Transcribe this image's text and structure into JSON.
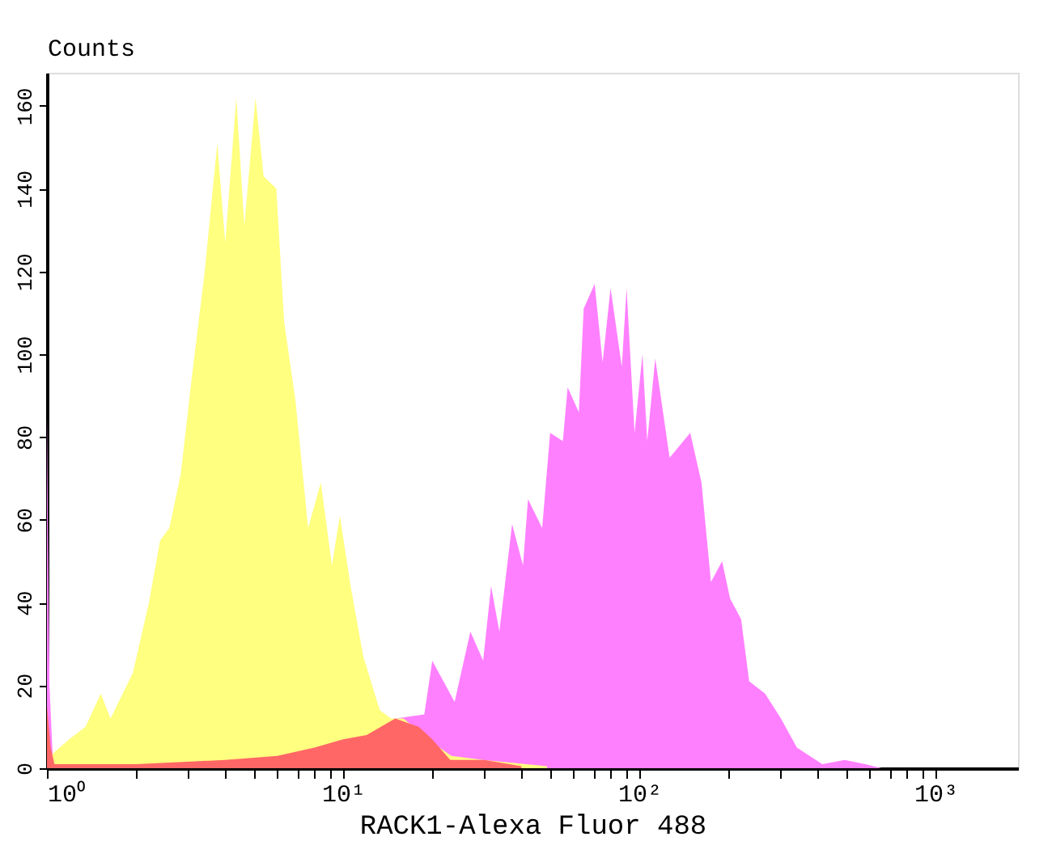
{
  "chart_data": {
    "type": "area",
    "xlabel": "RACK1-Alexa Fluor 488",
    "ylabel": "Counts",
    "log": "x",
    "grid": false,
    "xlim": [
      1,
      1900
    ],
    "ylim": [
      0,
      168
    ],
    "xticks": [
      {
        "value": 1,
        "label": "10⁰"
      },
      {
        "value": 2,
        "label": null
      },
      {
        "value": 3,
        "label": null
      },
      {
        "value": 4,
        "label": null
      },
      {
        "value": 5,
        "label": null
      },
      {
        "value": 6,
        "label": null
      },
      {
        "value": 7,
        "label": null
      },
      {
        "value": 8,
        "label": null
      },
      {
        "value": 9,
        "label": null
      },
      {
        "value": 10,
        "label": "10¹"
      },
      {
        "value": 20,
        "label": null
      },
      {
        "value": 30,
        "label": null
      },
      {
        "value": 40,
        "label": null
      },
      {
        "value": 50,
        "label": null
      },
      {
        "value": 60,
        "label": null
      },
      {
        "value": 70,
        "label": null
      },
      {
        "value": 80,
        "label": null
      },
      {
        "value": 90,
        "label": null
      },
      {
        "value": 100,
        "label": "10²"
      },
      {
        "value": 200,
        "label": null
      },
      {
        "value": 300,
        "label": null
      },
      {
        "value": 400,
        "label": null
      },
      {
        "value": 500,
        "label": null
      },
      {
        "value": 600,
        "label": null
      },
      {
        "value": 700,
        "label": null
      },
      {
        "value": 800,
        "label": null
      },
      {
        "value": 900,
        "label": null
      },
      {
        "value": 1000,
        "label": "10³"
      }
    ],
    "yticks": [
      0,
      20,
      40,
      60,
      80,
      100,
      120,
      140,
      160
    ],
    "series": [
      {
        "color": "#ff80ff",
        "x": [
          1,
          1.02,
          1.05,
          18.8,
          20.0,
          23.8,
          26.9,
          29.7,
          31.6,
          33.7,
          37.2,
          40.5,
          42.1,
          47.0,
          50.0,
          55.2,
          57.3,
          62.5,
          64.9,
          70.7,
          75.2,
          80.0,
          87.3,
          90.6,
          96.4,
          102.5,
          106.4,
          113.2,
          126.6,
          148.6,
          162.2,
          174.6,
          190.4,
          202.5,
          220.7,
          235.0,
          265.9,
          300.8,
          340.6,
          415,
          494,
          580,
          657
        ],
        "values": [
          85,
          20,
          0,
          13,
          26,
          16,
          33,
          26,
          44,
          33,
          59,
          49,
          65,
          58,
          81,
          79,
          92,
          86,
          111,
          117,
          98,
          116,
          97,
          116,
          81,
          100,
          79,
          99,
          75,
          81,
          69,
          45,
          50,
          41,
          36,
          21,
          18,
          12,
          5,
          1,
          2,
          1,
          0
        ]
      },
      {
        "color": "#ffff80",
        "x": [
          1.025,
          1.19,
          1.35,
          1.52,
          1.64,
          1.95,
          2.21,
          2.41,
          2.59,
          2.83,
          3.08,
          3.41,
          3.76,
          4.0,
          4.36,
          4.64,
          5.06,
          5.39,
          5.95,
          6.32,
          6.9,
          7.62,
          8.41,
          9.17,
          9.75,
          10.6,
          11.7,
          13.3,
          14.5,
          16.0,
          19.3,
          23.2,
          29.7,
          48.8
        ],
        "values": [
          3,
          7,
          10,
          18,
          12,
          23,
          40,
          55,
          58,
          71,
          94,
          120,
          151,
          127,
          162,
          131,
          162,
          143,
          140,
          108,
          89,
          58,
          69,
          49,
          61,
          44,
          27,
          14,
          12,
          12,
          7,
          3,
          2,
          0.5
        ]
      },
      {
        "color": "#ff6666",
        "x": [
          1,
          1.03,
          1.06,
          2,
          4,
          6,
          8,
          10,
          12,
          15,
          18,
          20,
          23,
          30,
          40
        ],
        "values": [
          15,
          5,
          1,
          1,
          2,
          3,
          5,
          7,
          8,
          12,
          10,
          7,
          2,
          2,
          0.5
        ]
      }
    ]
  }
}
